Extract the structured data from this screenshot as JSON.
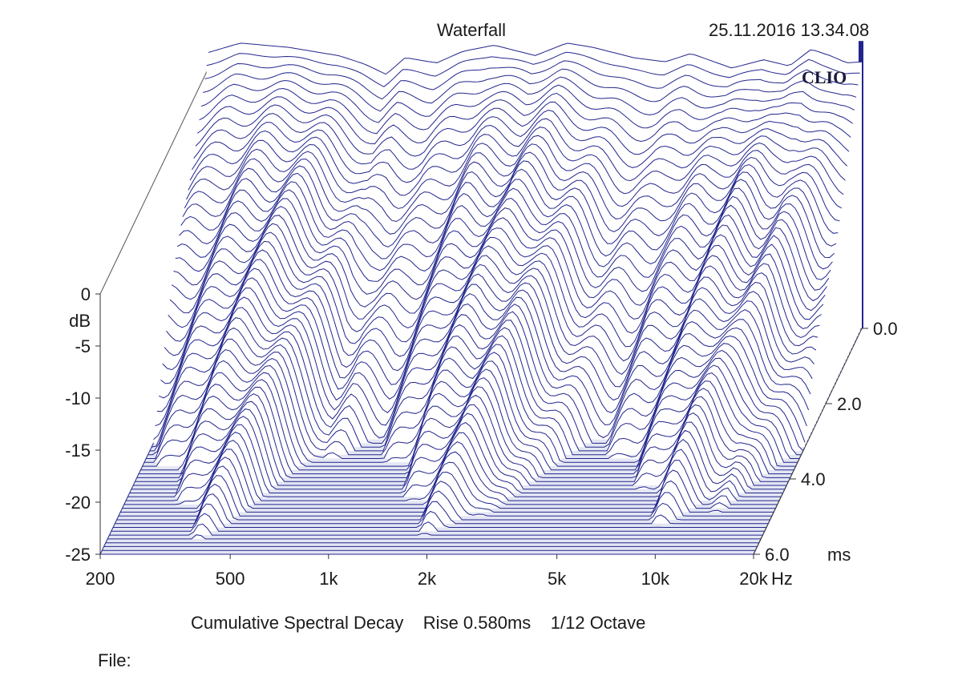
{
  "chart_data": {
    "type": "waterfall",
    "title": "Waterfall",
    "timestamp": "25.11.2016 13.34.08",
    "brand": "CLIO",
    "subtitle": "Cumulative Spectral Decay",
    "rise_label": "Rise 0.580ms",
    "resolution_label": "1/12 Octave",
    "file_label": "File:",
    "x_axis": {
      "unit": "Hz",
      "scale": "log",
      "range": [
        200,
        20000
      ],
      "ticks": [
        {
          "value": 200,
          "label": "200"
        },
        {
          "value": 500,
          "label": "500"
        },
        {
          "value": 1000,
          "label": "1k"
        },
        {
          "value": 2000,
          "label": "2k"
        },
        {
          "value": 5000,
          "label": "5k"
        },
        {
          "value": 10000,
          "label": "10k"
        },
        {
          "value": 20000,
          "label": "20k"
        }
      ]
    },
    "y_axis": {
      "unit": "dB",
      "range": [
        -25,
        0
      ],
      "ticks": [
        {
          "value": 0,
          "label": "0"
        },
        {
          "value": -5,
          "label": "-5"
        },
        {
          "value": -10,
          "label": "-10"
        },
        {
          "value": -15,
          "label": "-15"
        },
        {
          "value": -20,
          "label": "-20"
        },
        {
          "value": -25,
          "label": "-25"
        }
      ]
    },
    "z_axis": {
      "unit": "ms",
      "range": [
        0,
        6
      ],
      "ticks": [
        {
          "value": 0,
          "label": "0.0"
        },
        {
          "value": 2,
          "label": "2.0"
        },
        {
          "value": 4,
          "label": "4.0"
        },
        {
          "value": 6,
          "label": "6.0"
        }
      ]
    },
    "initial_response_db": [
      {
        "f": 200,
        "db": 1.5
      },
      {
        "f": 250,
        "db": 2.4
      },
      {
        "f": 350,
        "db": 2.0
      },
      {
        "f": 500,
        "db": 1.2
      },
      {
        "f": 600,
        "db": 0.4
      },
      {
        "f": 700,
        "db": -0.6
      },
      {
        "f": 800,
        "db": 1.0
      },
      {
        "f": 1000,
        "db": 0.5
      },
      {
        "f": 1200,
        "db": 1.6
      },
      {
        "f": 1500,
        "db": 2.2
      },
      {
        "f": 2000,
        "db": 1.2
      },
      {
        "f": 2500,
        "db": 2.4
      },
      {
        "f": 3000,
        "db": 2.0
      },
      {
        "f": 4000,
        "db": 1.0
      },
      {
        "f": 5000,
        "db": 0.6
      },
      {
        "f": 6000,
        "db": 1.4
      },
      {
        "f": 8000,
        "db": 0.0
      },
      {
        "f": 10000,
        "db": 0.8
      },
      {
        "f": 12000,
        "db": 0.2
      },
      {
        "f": 14000,
        "db": 1.8
      },
      {
        "f": 16000,
        "db": 1.2
      },
      {
        "f": 18000,
        "db": 0.5
      },
      {
        "f": 20000,
        "db": 0.6
      }
    ],
    "decay_db_per_ms": 6.5,
    "slice_count": 60
  }
}
